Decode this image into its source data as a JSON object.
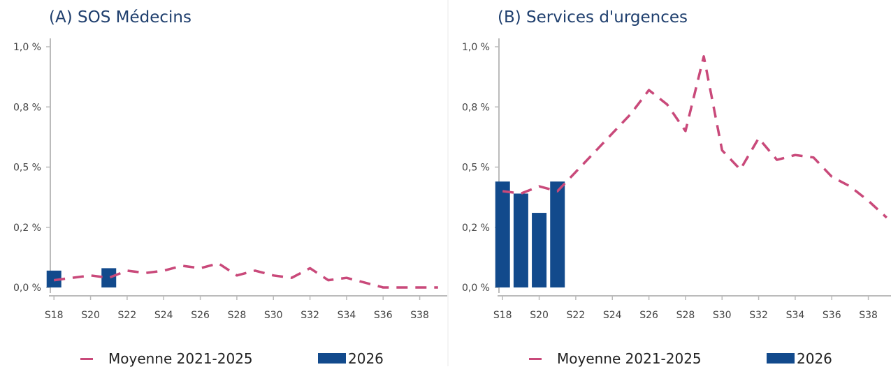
{
  "colors": {
    "line": "#c9497a",
    "bar": "#124a8c",
    "axis": "#bbbbbb",
    "text": "#444444",
    "title": "#1f3f6e"
  },
  "chart_data": [
    {
      "type": "bar",
      "title": "(A) SOS Médecins",
      "ylim": [
        0,
        1.0
      ],
      "yticks": [
        "0,0 %",
        "0,2 %",
        "0,5 %",
        "0,8 %",
        "1,0 %"
      ],
      "xticks": [
        "S18",
        "S20",
        "S22",
        "S24",
        "S26",
        "S28",
        "S30",
        "S32",
        "S34",
        "S36",
        "S38"
      ],
      "weeks": [
        18,
        19,
        20,
        21,
        22,
        23,
        24,
        25,
        26,
        27,
        28,
        29,
        30,
        31,
        32,
        33,
        34,
        35,
        36,
        37,
        38,
        39
      ],
      "series": [
        {
          "name": "Moyenne 2021-2025",
          "type": "line",
          "values": [
            0.03,
            0.04,
            0.05,
            0.04,
            0.07,
            0.06,
            0.07,
            0.09,
            0.08,
            0.1,
            0.05,
            0.07,
            0.05,
            0.04,
            0.08,
            0.03,
            0.04,
            0.02,
            0.0,
            0.0,
            0.0,
            0.0
          ]
        },
        {
          "name": "2026",
          "type": "bar",
          "weeks": [
            18,
            21
          ],
          "values": [
            0.07,
            0.08
          ]
        }
      ]
    },
    {
      "type": "bar",
      "title": "(B) Services d'urgences",
      "ylim": [
        0,
        1.0
      ],
      "yticks": [
        "0,0 %",
        "0,2 %",
        "0,5 %",
        "0,8 %",
        "1,0 %"
      ],
      "xticks": [
        "S18",
        "S20",
        "S22",
        "S24",
        "S26",
        "S28",
        "S30",
        "S32",
        "S34",
        "S36",
        "S38"
      ],
      "weeks": [
        18,
        19,
        20,
        21,
        22,
        23,
        24,
        25,
        26,
        27,
        28,
        29,
        30,
        31,
        32,
        33,
        34,
        35,
        36,
        37,
        38,
        39
      ],
      "series": [
        {
          "name": "Moyenne 2021-2025",
          "type": "line",
          "values": [
            0.4,
            0.39,
            0.42,
            0.4,
            0.48,
            0.56,
            0.64,
            0.72,
            0.82,
            0.76,
            0.65,
            0.96,
            0.57,
            0.49,
            0.62,
            0.53,
            0.55,
            0.54,
            0.46,
            0.42,
            0.36,
            0.29
          ]
        },
        {
          "name": "2026",
          "type": "bar",
          "weeks": [
            18,
            19,
            20,
            21
          ],
          "values": [
            0.44,
            0.39,
            0.31,
            0.44
          ]
        }
      ]
    }
  ],
  "legend": {
    "line_label": "Moyenne 2021-2025",
    "bar_label": "2026"
  }
}
